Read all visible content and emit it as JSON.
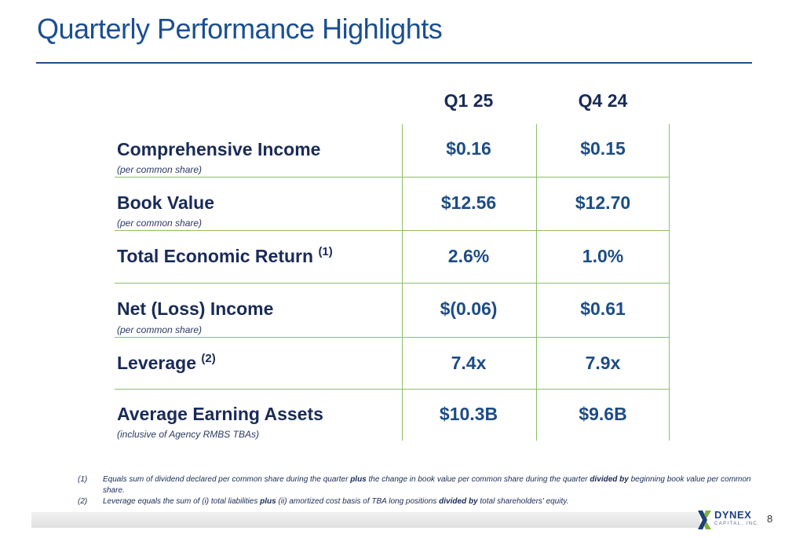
{
  "title": "Quarterly Performance Highlights",
  "columns": [
    "Q1 25",
    "Q4 24"
  ],
  "rows": [
    {
      "label": "Comprehensive Income",
      "sup": "",
      "sub": "(per common share)",
      "values": [
        "$0.16",
        "$0.15"
      ]
    },
    {
      "label": "Book Value",
      "sup": "",
      "sub": "(per common share)",
      "values": [
        "$12.56",
        "$12.70"
      ]
    },
    {
      "label": "Total Economic Return",
      "sup": "(1)",
      "sub": "",
      "values": [
        "2.6%",
        "1.0%"
      ]
    },
    {
      "label": "Net (Loss) Income",
      "sup": "",
      "sub": "(per common share)",
      "values": [
        "$(0.06)",
        "$0.61"
      ]
    },
    {
      "label": "Leverage",
      "sup": "(2)",
      "sub": "",
      "values": [
        "7.4x",
        "7.9x"
      ]
    },
    {
      "label": "Average Earning Assets",
      "sup": "",
      "sub": "(inclusive of Agency RMBS TBAs)",
      "values": [
        "$10.3B",
        "$9.6B"
      ]
    }
  ],
  "footnotes": [
    {
      "num": "(1)",
      "parts": [
        "Equals sum of dividend declared per common share during the quarter ",
        "plus",
        " the change in book value per common share during the quarter ",
        "divided by",
        " beginning book value per common share."
      ]
    },
    {
      "num": "(2)",
      "parts": [
        "Leverage equals the sum of (i) total liabilities ",
        "plus",
        " (ii) amortized cost basis of TBA long positions ",
        "divided by",
        " total shareholders' equity."
      ]
    }
  ],
  "logo": {
    "word": "DYNEX",
    "sub": "CAPITAL, INC.",
    "brand_color": "#1d3f7a",
    "accent_color": "#7fb23a"
  },
  "page_number": "8",
  "colors": {
    "title": "#1b4f8f",
    "rule": "#1f4f85",
    "grid": "#8cc06a",
    "value": "#1d4d84",
    "label": "#1a2b57"
  }
}
